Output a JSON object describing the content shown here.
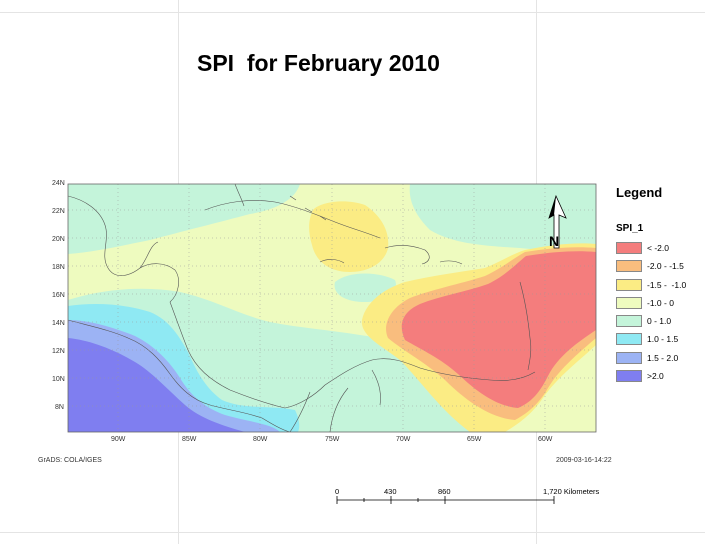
{
  "title": "SPI  for February 2010",
  "legend": {
    "title": "Legend",
    "layer": "SPI_1",
    "items": [
      {
        "label": "< -2.0",
        "color": "#f47d7d"
      },
      {
        "label": "-2.0 - -1.5",
        "color": "#f9bd7e"
      },
      {
        "label": "-1.5 -  -1.0",
        "color": "#fbec84"
      },
      {
        "label": "-1.0 - 0",
        "color": "#eefbbf"
      },
      {
        "label": "0 - 1.0",
        "color": "#c4f4da"
      },
      {
        "label": "1.0 - 1.5",
        "color": "#8fe9f3"
      },
      {
        "label": "1.5 - 2.0",
        "color": "#9cb3f4"
      },
      {
        "label": ">2.0",
        "color": "#7f7ef0"
      }
    ]
  },
  "axes": {
    "lat_labels": [
      "24N",
      "22N",
      "20N",
      "18N",
      "16N",
      "14N",
      "12N",
      "10N",
      "8N"
    ],
    "lon_labels": [
      "90W",
      "85W",
      "80W",
      "75W",
      "70W",
      "65W",
      "60W"
    ]
  },
  "footer": {
    "left": "GrADS: COLA/IGES",
    "right": "2009-03-16-14:22"
  },
  "scale_bar": {
    "labels": [
      "0",
      "430",
      "860",
      "1,720 Kilometers"
    ]
  },
  "north_arrow": {
    "letter": "N"
  }
}
